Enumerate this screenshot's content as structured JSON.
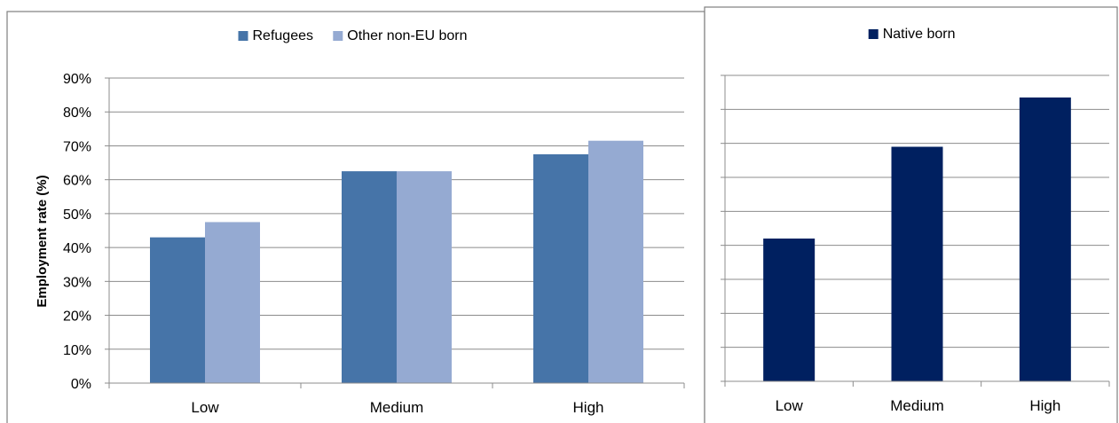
{
  "chart_data": [
    {
      "type": "bar",
      "categories": [
        "Low",
        "Medium",
        "High"
      ],
      "series": [
        {
          "name": "Refugees",
          "color": "#4674A8",
          "values": [
            43,
            62.5,
            67.5
          ]
        },
        {
          "name": "Other non-EU born",
          "color": "#95AAD2",
          "values": [
            47.5,
            62.5,
            71.5
          ]
        }
      ],
      "ylabel": "Employment rate (%)",
      "ylim": [
        0,
        90
      ],
      "yticks": [
        0,
        10,
        20,
        30,
        40,
        50,
        60,
        70,
        80,
        90
      ],
      "ytick_labels": [
        "0%",
        "10%",
        "20%",
        "30%",
        "40%",
        "50%",
        "60%",
        "70%",
        "80%",
        "90%"
      ],
      "grid": true,
      "legend": "top-center"
    },
    {
      "type": "bar",
      "categories": [
        "Low",
        "Medium",
        "High"
      ],
      "series": [
        {
          "name": "Native born",
          "color": "#002060",
          "values": [
            42,
            69,
            83.5
          ]
        }
      ],
      "ylim": [
        0,
        90
      ],
      "yticks": [
        0,
        10,
        20,
        30,
        40,
        50,
        60,
        70,
        80,
        90
      ],
      "grid": true,
      "legend": "top-center"
    }
  ]
}
